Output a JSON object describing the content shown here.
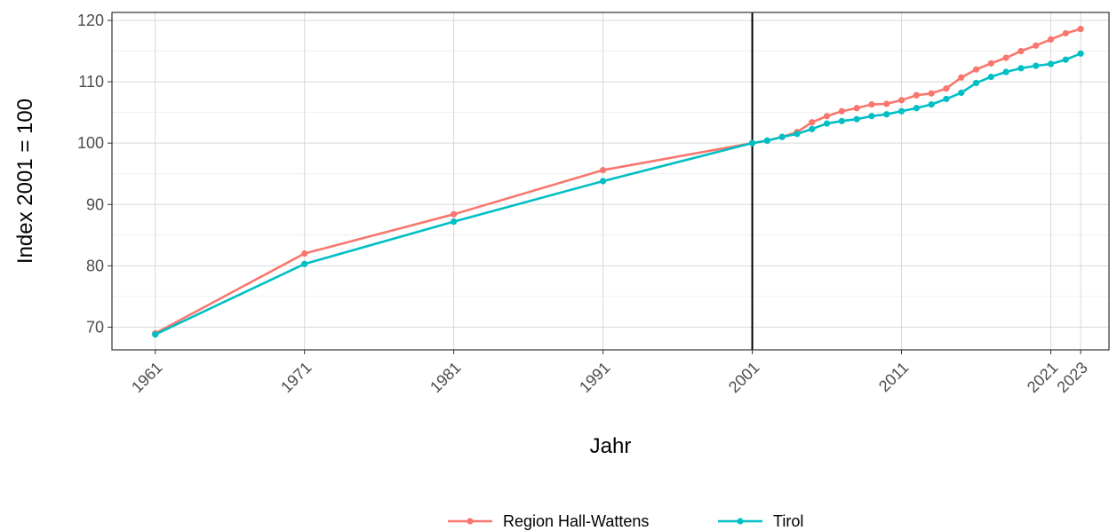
{
  "chart_data": {
    "type": "line",
    "title": "",
    "xlabel": "Jahr",
    "ylabel": "Index 2001 = 100",
    "xlim": [
      1959.1,
      1924.9
    ],
    "ylim": [
      66.3,
      121.3
    ],
    "x_ticks": [
      "1961",
      "1971",
      "1981",
      "1991",
      "2001",
      "2011",
      "2021",
      "2023"
    ],
    "y_ticks": [
      "70",
      "80",
      "90",
      "100",
      "110",
      "120"
    ],
    "grid": true,
    "reference_line_x": 2001,
    "legend_position": "bottom",
    "series": [
      {
        "name": "Region Hall-Wattens",
        "color": "#F8766D",
        "x": [
          1961,
          1971,
          1981,
          1991,
          2001,
          2002,
          2003,
          2004,
          2005,
          2006,
          2007,
          2008,
          2009,
          2010,
          2011,
          2012,
          2013,
          2014,
          2015,
          2016,
          2017,
          2018,
          2019,
          2020,
          2021,
          2022,
          2023
        ],
        "y": [
          69.0,
          82.0,
          88.4,
          95.6,
          100.0,
          100.4,
          101.0,
          101.8,
          103.4,
          104.4,
          105.2,
          105.7,
          106.3,
          106.4,
          107.0,
          107.8,
          108.1,
          108.9,
          110.7,
          112.0,
          113.0,
          113.9,
          115.0,
          115.9,
          116.9,
          117.9,
          118.6
        ]
      },
      {
        "name": "Tirol",
        "color": "#00BFC4",
        "x": [
          1961,
          1971,
          1981,
          1991,
          2001,
          2002,
          2003,
          2004,
          2005,
          2006,
          2007,
          2008,
          2009,
          2010,
          2011,
          2012,
          2013,
          2014,
          2015,
          2016,
          2017,
          2018,
          2019,
          2020,
          2021,
          2022,
          2023
        ],
        "y": [
          68.8,
          80.3,
          87.2,
          93.8,
          100.0,
          100.4,
          101.0,
          101.5,
          102.3,
          103.2,
          103.6,
          103.9,
          104.4,
          104.7,
          105.2,
          105.7,
          106.3,
          107.2,
          108.2,
          109.8,
          110.8,
          111.6,
          112.2,
          112.6,
          112.9,
          113.6,
          114.6
        ]
      }
    ]
  }
}
